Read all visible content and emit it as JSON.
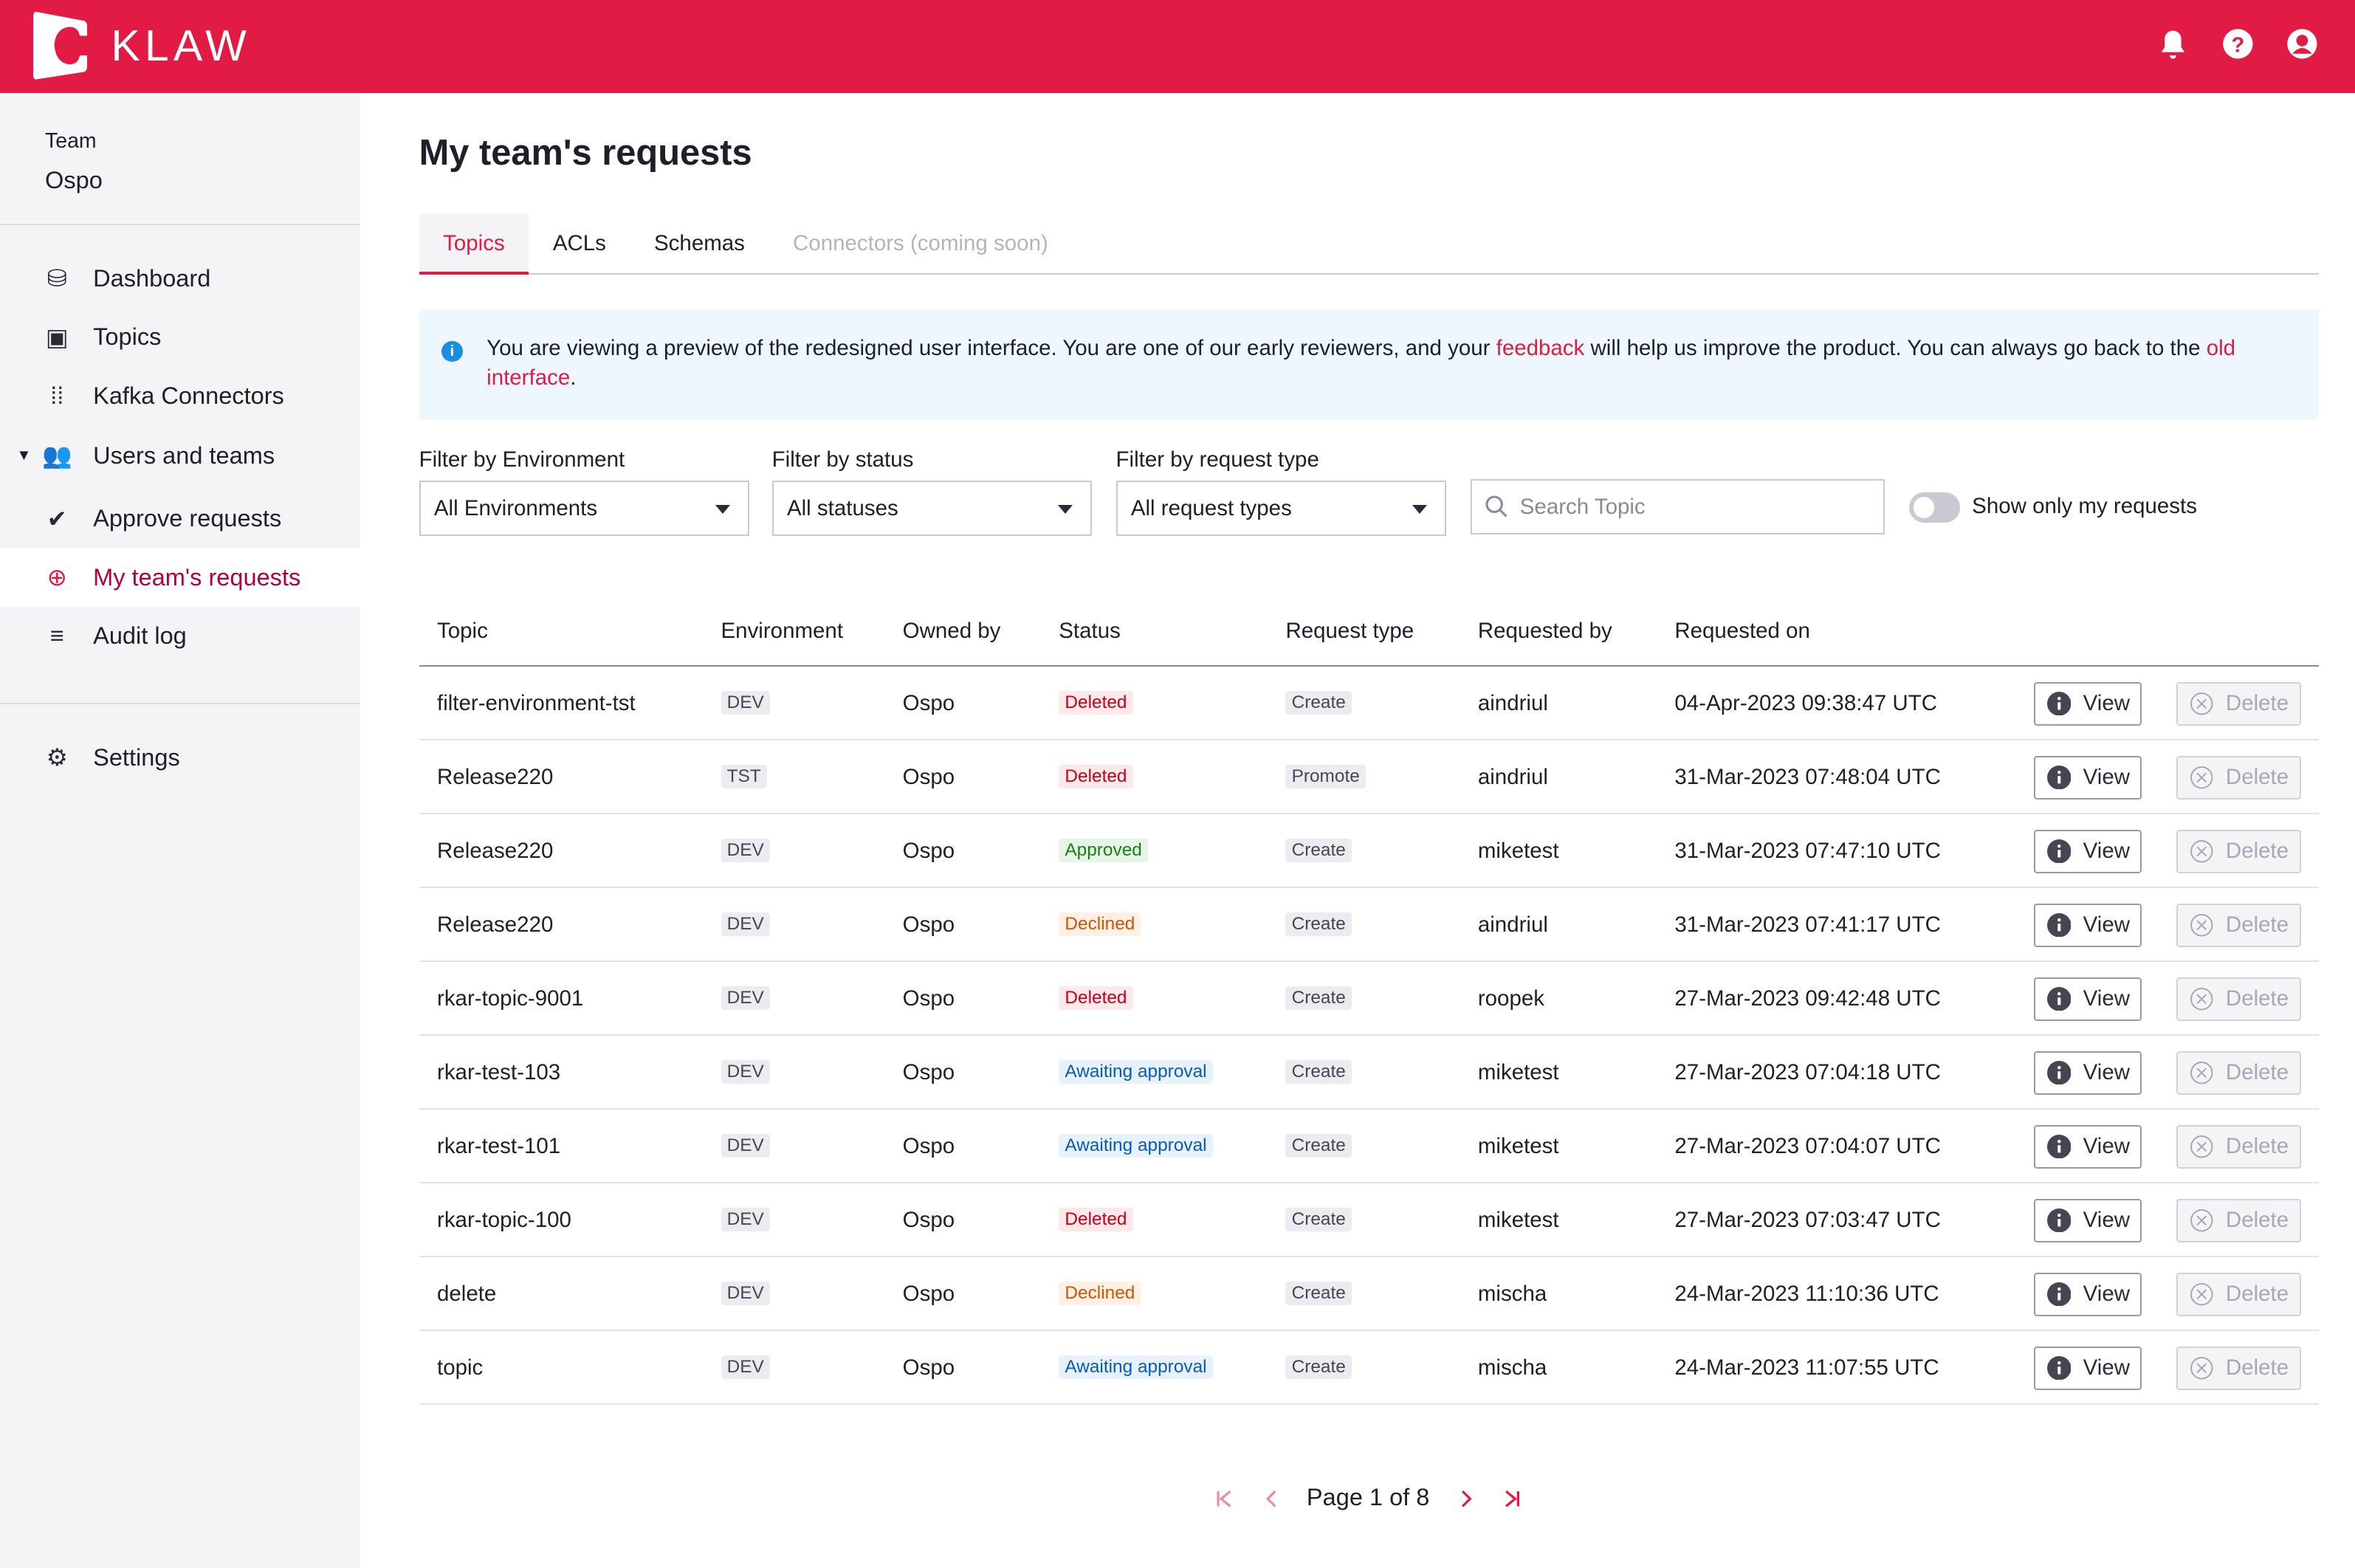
{
  "header": {
    "brand": "KLAW",
    "icons": [
      "bell-icon",
      "help-icon",
      "user-icon"
    ],
    "color": "#e11b44"
  },
  "sidebar": {
    "team_label": "Team",
    "team_name": "Ospo",
    "items": [
      {
        "label": "Dashboard",
        "icon": "database-icon"
      },
      {
        "label": "Topics",
        "icon": "topics-icon"
      },
      {
        "label": "Kafka Connectors",
        "icon": "connectors-icon"
      },
      {
        "label": "Users and teams",
        "icon": "users-icon"
      },
      {
        "label": "Approve requests",
        "icon": "check-circle-icon"
      },
      {
        "label": "My team's requests",
        "icon": "plus-circle-icon",
        "active": true
      },
      {
        "label": "Audit log",
        "icon": "list-icon"
      },
      {
        "label": "Settings",
        "icon": "gear-icon"
      }
    ]
  },
  "page": {
    "title": "My team's requests"
  },
  "tabs": [
    {
      "label": "Topics",
      "active": true
    },
    {
      "label": "ACLs"
    },
    {
      "label": "Schemas"
    },
    {
      "label": "Connectors (coming soon)",
      "disabled": true
    }
  ],
  "alert": {
    "text1": "You are viewing a preview of the redesigned user interface. You are one of our early reviewers, and your ",
    "link1": "feedback",
    "text2": " will help us improve the product. You can always go back to the ",
    "link2": "old interface",
    "text3": "."
  },
  "filters": {
    "env_label": "Filter by Environment",
    "env_value": "All Environments",
    "status_label": "Filter by status",
    "status_value": "All statuses",
    "type_label": "Filter by request type",
    "type_value": "All request types",
    "search_placeholder": "Search Topic",
    "toggle_label": "Show only my requests",
    "toggle_on": false
  },
  "table": {
    "headers": [
      "Topic",
      "Environment",
      "Owned by",
      "Status",
      "Request type",
      "Requested by",
      "Requested on"
    ],
    "view_label": "View",
    "delete_label": "Delete",
    "rows": [
      [
        "filter-environment-tst",
        "DEV",
        "Ospo",
        "Deleted",
        "Create",
        "aindriul",
        "04-Apr-2023 09:38:47 UTC"
      ],
      [
        "Release220",
        "TST",
        "Ospo",
        "Deleted",
        "Promote",
        "aindriul",
        "31-Mar-2023 07:48:04 UTC"
      ],
      [
        "Release220",
        "DEV",
        "Ospo",
        "Approved",
        "Create",
        "miketest",
        "31-Mar-2023 07:47:10 UTC"
      ],
      [
        "Release220",
        "DEV",
        "Ospo",
        "Declined",
        "Create",
        "aindriul",
        "31-Mar-2023 07:41:17 UTC"
      ],
      [
        "rkar-topic-9001",
        "DEV",
        "Ospo",
        "Deleted",
        "Create",
        "roopek",
        "27-Mar-2023 09:42:48 UTC"
      ],
      [
        "rkar-test-103",
        "DEV",
        "Ospo",
        "Awaiting approval",
        "Create",
        "miketest",
        "27-Mar-2023 07:04:18 UTC"
      ],
      [
        "rkar-test-101",
        "DEV",
        "Ospo",
        "Awaiting approval",
        "Create",
        "miketest",
        "27-Mar-2023 07:04:07 UTC"
      ],
      [
        "rkar-topic-100",
        "DEV",
        "Ospo",
        "Deleted",
        "Create",
        "miketest",
        "27-Mar-2023 07:03:47 UTC"
      ],
      [
        "delete",
        "DEV",
        "Ospo",
        "Declined",
        "Create",
        "mischa",
        "24-Mar-2023 11:10:36 UTC"
      ],
      [
        "topic",
        "DEV",
        "Ospo",
        "Awaiting approval",
        "Create",
        "mischa",
        "24-Mar-2023 11:07:55 UTC"
      ]
    ]
  },
  "pagination": {
    "label": "Page 1 of 8",
    "current": 1,
    "total": 8
  }
}
